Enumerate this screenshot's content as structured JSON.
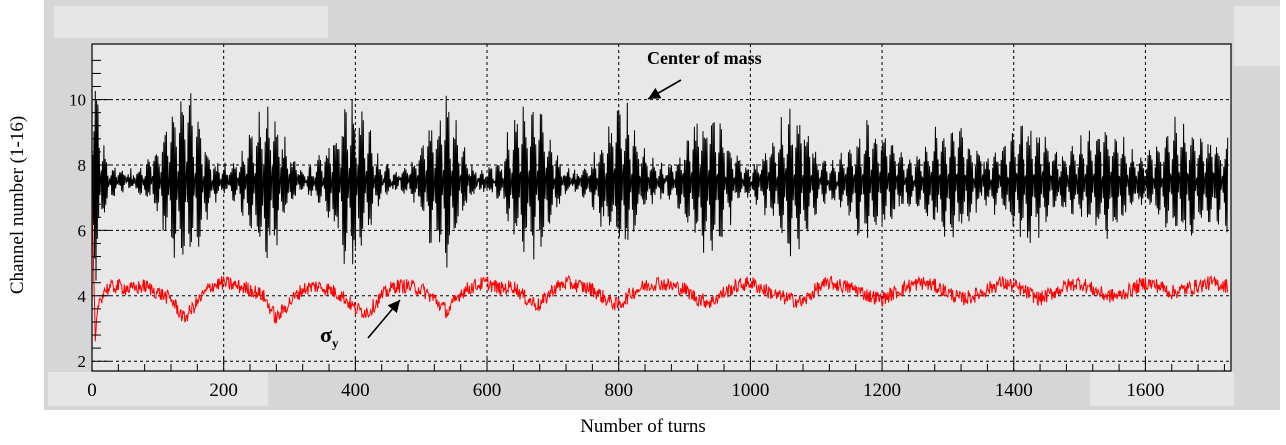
{
  "chart_data": {
    "type": "line",
    "xlabel": "Number of turns",
    "ylabel": "Channel number (1-16)",
    "xlim": [
      0,
      1730
    ],
    "ylim": [
      1.7,
      11.7
    ],
    "x_ticks": [
      0,
      200,
      400,
      600,
      800,
      1000,
      1200,
      1400,
      1600
    ],
    "y_ticks": [
      2,
      4,
      6,
      8,
      10
    ],
    "grid": true,
    "annotations": [
      {
        "text": "Center of mass",
        "x": 850,
        "y": 11.1
      },
      {
        "text": "σ",
        "subscript": "y",
        "x": 380,
        "y": 3.05
      }
    ],
    "series": [
      {
        "color": "#000000",
        "description_points": "approximate sampled values (turn, channel) for center-of-mass oscillation",
        "x": [
          0,
          5,
          10,
          20,
          40,
          60,
          80,
          100,
          120,
          140,
          160,
          180,
          200,
          220,
          240,
          260,
          280,
          300,
          320,
          340,
          360,
          380,
          400,
          420,
          440,
          460,
          480,
          500,
          520,
          540,
          560,
          580,
          600,
          620,
          640,
          660,
          680,
          700,
          720,
          740,
          760,
          780,
          800,
          820,
          840,
          860,
          880,
          900,
          920,
          940,
          960,
          980,
          1000,
          1020,
          1040,
          1060,
          1080,
          1100,
          1120,
          1140,
          1160,
          1180,
          1200,
          1220,
          1240,
          1260,
          1280,
          1300,
          1320,
          1340,
          1360,
          1380,
          1400,
          1420,
          1440,
          1460,
          1480,
          1500,
          1520,
          1540,
          1560,
          1580,
          1600,
          1620,
          1640,
          1660,
          1680,
          1700,
          1725
        ],
        "amplitude": [
          3.5,
          3.4,
          2.8,
          0.8,
          0.4,
          0.3,
          0.6,
          1.2,
          2.5,
          3.2,
          2.2,
          0.9,
          0.5,
          0.7,
          1.6,
          2.9,
          2.2,
          0.9,
          0.4,
          0.5,
          1.5,
          2.6,
          3.0,
          1.8,
          0.6,
          0.3,
          0.5,
          1.2,
          2.4,
          2.8,
          1.4,
          0.5,
          0.3,
          0.8,
          2.0,
          2.6,
          2.4,
          1.2,
          0.4,
          0.3,
          0.8,
          1.8,
          2.6,
          2.2,
          1.0,
          0.5,
          0.6,
          1.4,
          2.2,
          2.6,
          1.8,
          0.8,
          0.5,
          0.9,
          1.8,
          2.5,
          2.2,
          1.0,
          0.6,
          0.8,
          1.5,
          2.0,
          1.8,
          1.1,
          0.8,
          1.0,
          1.6,
          2.0,
          1.8,
          1.2,
          0.8,
          1.1,
          1.8,
          2.2,
          1.7,
          1.2,
          1.0,
          1.3,
          1.8,
          2.0,
          1.6,
          1.1,
          1.0,
          1.3,
          1.9,
          2.1,
          1.6,
          1.4,
          1.5
        ],
        "center": 7.5
      },
      {
        "color": "#ff0000",
        "description_points": "approximate sampled values (turn, channel) for sigma_y",
        "x": [
          0,
          5,
          10,
          20,
          40,
          60,
          80,
          100,
          120,
          140,
          160,
          180,
          200,
          220,
          240,
          260,
          280,
          300,
          320,
          340,
          360,
          380,
          400,
          420,
          440,
          460,
          480,
          500,
          520,
          540,
          560,
          580,
          600,
          620,
          640,
          660,
          680,
          700,
          720,
          740,
          760,
          780,
          800,
          820,
          840,
          860,
          880,
          900,
          920,
          940,
          960,
          980,
          1000,
          1020,
          1040,
          1060,
          1080,
          1100,
          1120,
          1140,
          1160,
          1180,
          1200,
          1220,
          1240,
          1260,
          1280,
          1300,
          1320,
          1340,
          1360,
          1380,
          1400,
          1420,
          1440,
          1460,
          1480,
          1500,
          1520,
          1540,
          1560,
          1580,
          1600,
          1620,
          1640,
          1660,
          1680,
          1700,
          1725
        ],
        "values": [
          6.8,
          2.6,
          3.8,
          4.2,
          4.3,
          4.2,
          4.3,
          4.1,
          3.9,
          3.3,
          3.8,
          4.3,
          4.4,
          4.3,
          4.2,
          4.0,
          3.3,
          3.8,
          4.2,
          4.3,
          4.2,
          4.0,
          3.6,
          3.5,
          4.0,
          4.3,
          4.3,
          4.2,
          3.9,
          3.5,
          4.1,
          4.3,
          4.4,
          4.2,
          4.3,
          3.9,
          3.7,
          4.2,
          4.4,
          4.3,
          4.2,
          3.9,
          3.7,
          4.1,
          4.3,
          4.4,
          4.3,
          4.2,
          3.9,
          3.8,
          4.1,
          4.3,
          4.4,
          4.2,
          4.0,
          3.9,
          3.8,
          4.2,
          4.4,
          4.3,
          4.2,
          4.0,
          3.9,
          4.1,
          4.3,
          4.4,
          4.3,
          4.1,
          3.9,
          4.0,
          4.2,
          4.4,
          4.3,
          4.1,
          3.9,
          4.1,
          4.3,
          4.4,
          4.2,
          4.0,
          4.0,
          4.2,
          4.4,
          4.3,
          4.1,
          4.2,
          4.3,
          4.4,
          4.3
        ]
      }
    ]
  }
}
